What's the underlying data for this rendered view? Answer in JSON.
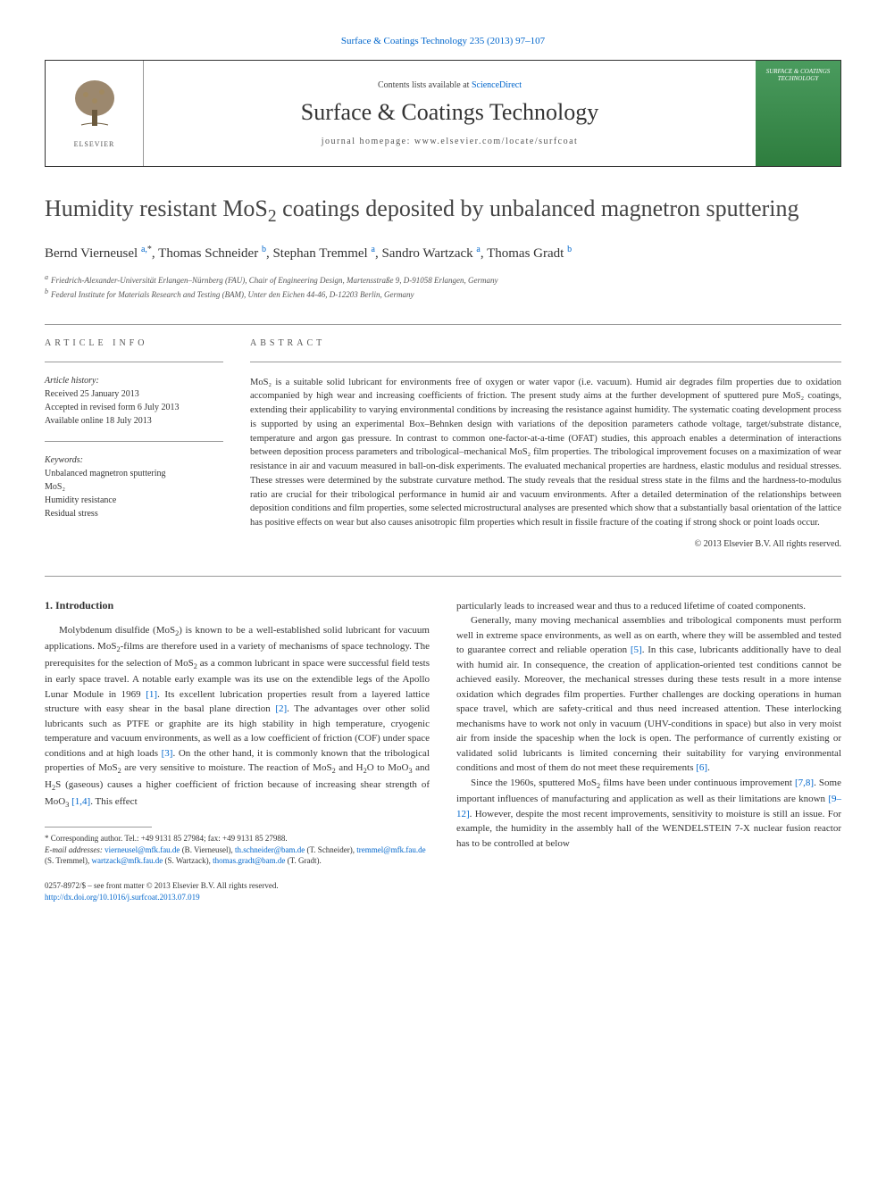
{
  "top_link": {
    "journal": "Surface & Coatings Technology",
    "citation": "235 (2013) 97–107"
  },
  "header": {
    "contents_text": "Contents lists available at",
    "contents_link": "ScienceDirect",
    "journal_name": "Surface & Coatings Technology",
    "homepage_label": "journal homepage:",
    "homepage_url": "www.elsevier.com/locate/surfcoat",
    "publisher": "ELSEVIER",
    "cover_text": "SURFACE & COATINGS TECHNOLOGY"
  },
  "article": {
    "title_pre": "Humidity resistant MoS",
    "title_sub": "2",
    "title_post": " coatings deposited by unbalanced magnetron sputtering",
    "authors_html": "Bernd Vierneusel <sup><a class='sublink'>a,</a>*</sup>, Thomas Schneider <sup><a class='sublink'>b</a></sup>, Stephan Tremmel <sup><a class='sublink'>a</a></sup>, Sandro Wartzack <sup><a class='sublink'>a</a></sup>, Thomas Gradt <sup><a class='sublink'>b</a></sup>",
    "affiliations": [
      {
        "marker": "a",
        "text": "Friedrich-Alexander-Universität Erlangen–Nürnberg (FAU), Chair of Engineering Design, Martensstraße 9, D-91058 Erlangen, Germany"
      },
      {
        "marker": "b",
        "text": "Federal Institute for Materials Research and Testing (BAM), Unter den Eichen 44-46, D-12203 Berlin, Germany"
      }
    ]
  },
  "info": {
    "heading": "article info",
    "history_title": "Article history:",
    "history_lines": [
      "Received 25 January 2013",
      "Accepted in revised form 6 July 2013",
      "Available online 18 July 2013"
    ],
    "keywords_title": "Keywords:",
    "keywords": [
      "Unbalanced magnetron sputtering",
      "MoS₂",
      "Humidity resistance",
      "Residual stress"
    ]
  },
  "abstract": {
    "heading": "abstract",
    "text": "MoS₂ is a suitable solid lubricant for environments free of oxygen or water vapor (i.e. vacuum). Humid air degrades film properties due to oxidation accompanied by high wear and increasing coefficients of friction. The present study aims at the further development of sputtered pure MoS₂ coatings, extending their applicability to varying environmental conditions by increasing the resistance against humidity. The systematic coating development process is supported by using an experimental Box–Behnken design with variations of the deposition parameters cathode voltage, target/substrate distance, temperature and argon gas pressure. In contrast to common one-factor-at-a-time (OFAT) studies, this approach enables a determination of interactions between deposition process parameters and tribological–mechanical MoS₂ film properties. The tribological improvement focuses on a maximization of wear resistance in air and vacuum measured in ball-on-disk experiments. The evaluated mechanical properties are hardness, elastic modulus and residual stresses. These stresses were determined by the substrate curvature method. The study reveals that the residual stress state in the films and the hardness-to-modulus ratio are crucial for their tribological performance in humid air and vacuum environments. After a detailed determination of the relationships between deposition conditions and film properties, some selected microstructural analyses are presented which show that a substantially basal orientation of the lattice has positive effects on wear but also causes anisotropic film properties which result in fissile fracture of the coating if strong shock or point loads occur.",
    "copyright": "© 2013 Elsevier B.V. All rights reserved."
  },
  "body": {
    "section_heading": "1. Introduction",
    "left_col_html": "Molybdenum disulfide (MoS<sub>2</sub>) is known to be a well-established solid lubricant for vacuum applications. MoS<sub>2</sub>-films are therefore used in a variety of mechanisms of space technology. The prerequisites for the selection of MoS<sub>2</sub> as a common lubricant in space were successful field tests in early space travel. A notable early example was its use on the extendible legs of the Apollo Lunar Module in 1969 <a>[1]</a>. Its excellent lubrication properties result from a layered lattice structure with easy shear in the basal plane direction <a>[2]</a>. The advantages over other solid lubricants such as PTFE or graphite are its high stability in high temperature, cryogenic temperature and vacuum environments, as well as a low coefficient of friction (COF) under space conditions and at high loads <a>[3]</a>. On the other hand, it is commonly known that the tribological properties of MoS<sub>2</sub> are very sensitive to moisture. The reaction of MoS<sub>2</sub> and H<sub>2</sub>O to MoO<sub>3</sub> and H<sub>2</sub>S (gaseous) causes a higher coefficient of friction because of increasing shear strength of MoO<sub>3</sub> <a>[1,4]</a>. This effect",
    "right_col_paragraphs": [
      "particularly leads to increased wear and thus to a reduced lifetime of coated components.",
      "Generally, many moving mechanical assemblies and tribological components must perform well in extreme space environments, as well as on earth, where they will be assembled and tested to guarantee correct and reliable operation <a>[5]</a>. In this case, lubricants additionally have to deal with humid air. In consequence, the creation of application-oriented test conditions cannot be achieved easily. Moreover, the mechanical stresses during these tests result in a more intense oxidation which degrades film properties. Further challenges are docking operations in human space travel, which are safety-critical and thus need increased attention. These interlocking mechanisms have to work not only in vacuum (UHV-conditions in space) but also in very moist air from inside the spaceship when the lock is open. The performance of currently existing or validated solid lubricants is limited concerning their suitability for varying environmental conditions and most of them do not meet these requirements <a>[6]</a>.",
      "Since the 1960s, sputtered MoS<sub>2</sub> films have been under continuous improvement <a>[7,8]</a>. Some important influences of manufacturing and application as well as their limitations are known <a>[9–12]</a>. However, despite the most recent improvements, sensitivity to moisture is still an issue. For example, the humidity in the assembly hall of the WENDELSTEIN 7-X nuclear fusion reactor has to be controlled at below"
    ]
  },
  "footnote": {
    "corresponding": "* Corresponding author. Tel.: +49 9131 85 27984; fax: +49 9131 85 27988.",
    "emails_label": "E-mail addresses:",
    "emails": [
      {
        "addr": "vierneusel@mfk.fau.de",
        "name": "(B. Vierneusel)"
      },
      {
        "addr": "th.schneider@bam.de",
        "name": "(T. Schneider)"
      },
      {
        "addr": "tremmel@mfk.fau.de",
        "name": "(S. Tremmel)"
      },
      {
        "addr": "wartzack@mfk.fau.de",
        "name": "(S. Wartzack)"
      },
      {
        "addr": "thomas.gradt@bam.de",
        "name": "(T. Gradt)"
      }
    ]
  },
  "footer": {
    "issn": "0257-8972/$ – see front matter © 2013 Elsevier B.V. All rights reserved.",
    "doi": "http://dx.doi.org/10.1016/j.surfcoat.2013.07.019"
  },
  "colors": {
    "link": "#0066cc",
    "text": "#333333",
    "cover_gradient_top": "#4a9b5e",
    "cover_gradient_bottom": "#2e7d3e"
  }
}
